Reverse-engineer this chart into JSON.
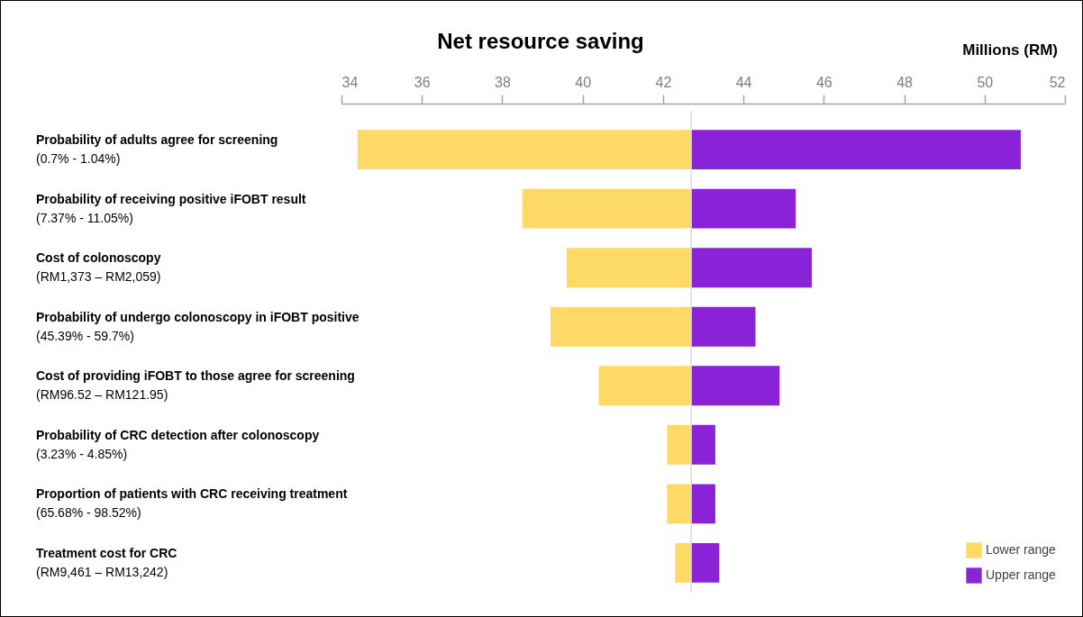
{
  "chart_data": {
    "type": "bar",
    "orientation": "horizontal",
    "title": "Net resource saving",
    "xlabel": "Millions (RM)",
    "categories": [
      "Probability of adults agree for screening\n(0.7% - 1.04%)",
      "Probability of receiving positive iFOBT result\n(7.37% - 11.05%)",
      "Cost of colonoscopy\n(RM1,373 – RM2,059)",
      "Probability of undergo colonoscopy in iFOBT positive\n(45.39% - 59.7%)",
      "Cost of providing iFOBT to those agree for screening\n(RM96.52 – RM121.95)",
      "Probability of CRC detection after colonoscopy\n(3.23% - 4.85%)",
      "Proportion of patients with CRC receiving treatment\n(65.68% - 98.52%)",
      "Treatment cost for CRC\n(RM9,461 – RM13,242)"
    ],
    "series": [
      {
        "name": "Lower range",
        "color": "#ffd966",
        "base": [
          42.7,
          42.7,
          42.7,
          42.7,
          42.7,
          42.7,
          42.7,
          42.7
        ],
        "values": [
          -8.3,
          -4.2,
          -3.1,
          -3.5,
          -2.3,
          -0.6,
          -0.6,
          -0.4
        ]
      },
      {
        "name": "Upper range",
        "color": "#8a22d8",
        "base": [
          42.7,
          42.7,
          42.7,
          42.7,
          42.7,
          42.7,
          42.7,
          42.7
        ],
        "values": [
          8.2,
          2.6,
          3.0,
          1.6,
          2.2,
          0.6,
          0.6,
          0.7
        ]
      }
    ],
    "xlim": [
      34,
      52
    ],
    "xticks": [
      34,
      36,
      38,
      40,
      42,
      44,
      46,
      48,
      50,
      52
    ],
    "ref_lines": [
      {
        "axis": "x",
        "value": 42.7,
        "color": "#d9d9d9"
      }
    ],
    "grid": false,
    "legend": "bottom right"
  }
}
